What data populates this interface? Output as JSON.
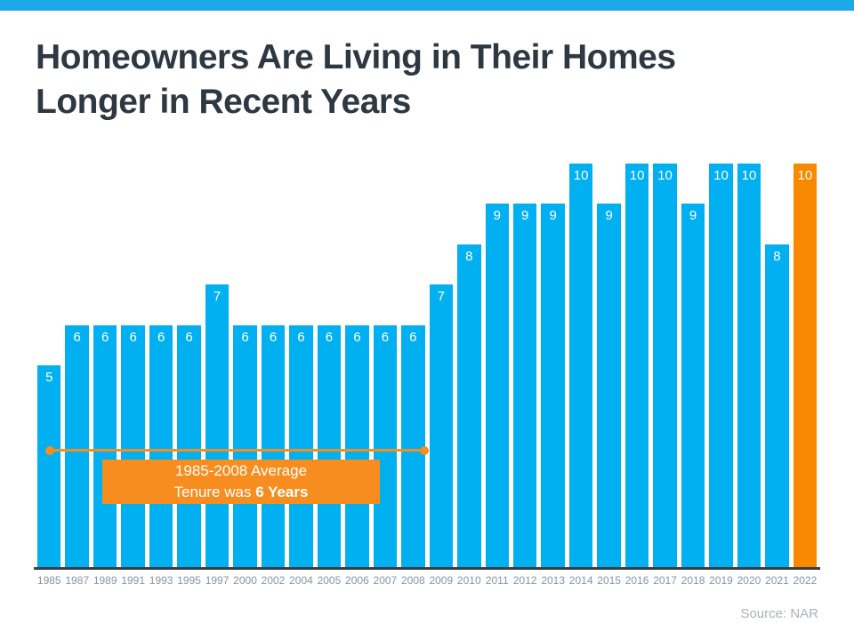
{
  "page": {
    "title_line1": "Homeowners Are Living in Their Homes",
    "title_line2": "Longer in Recent Years",
    "source": "Source: NAR"
  },
  "colors": {
    "top_strip": "#1CA9E8",
    "bar_blue": "#00B0F0",
    "bar_orange": "#F98A00",
    "annotation_orange": "#F78D1E",
    "title_text": "#2E3842",
    "axis_line": "#3A3E43",
    "axis_label_text": "#8695A7",
    "source_text": "#A8B2BD",
    "bar_value_text": "#FFFFFF"
  },
  "annotation": {
    "line1": "1985-2008 Average",
    "line2_prefix": "Tenure was ",
    "line2_bold": "6 Years"
  },
  "chart_data": {
    "type": "bar",
    "title": "Homeowners Are Living in Their Homes Longer in Recent Years",
    "xlabel": "",
    "ylabel": "",
    "ylim": [
      0,
      10
    ],
    "grid": false,
    "legend_position": "none",
    "categories": [
      "1985",
      "1987",
      "1989",
      "1991",
      "1993",
      "1995",
      "1997",
      "2000",
      "2002",
      "2004",
      "2005",
      "2006",
      "2007",
      "2008",
      "2009",
      "2010",
      "2011",
      "2012",
      "2013",
      "2014",
      "2015",
      "2016",
      "2017",
      "2018",
      "2019",
      "2020",
      "2021",
      "2022"
    ],
    "values": [
      5,
      6,
      6,
      6,
      6,
      6,
      7,
      6,
      6,
      6,
      6,
      6,
      6,
      6,
      7,
      8,
      9,
      9,
      9,
      10,
      9,
      10,
      10,
      9,
      10,
      10,
      8,
      10
    ],
    "bar_labels_shown": true,
    "highlight_index": 27,
    "highlight_category": "2022",
    "annotation": {
      "text": "1985-2008 Average Tenure was 6 Years",
      "span_categories": [
        "1985",
        "2008"
      ]
    },
    "source": "Source: NAR"
  }
}
